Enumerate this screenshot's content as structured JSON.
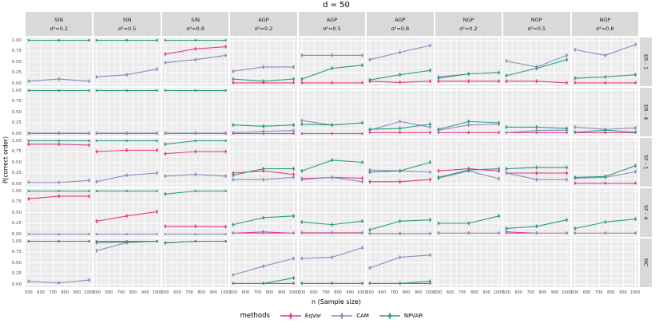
{
  "chart_data": {
    "type": "line",
    "title": "d =  50",
    "xlabel": "n (Sample size)",
    "ylabel": "P(correct order)",
    "legend_title": "methods",
    "x": [
      500,
      750,
      1000
    ],
    "x_ticks": [
      "500",
      "600",
      "700",
      "800",
      "900",
      "1000"
    ],
    "y_ticks": [
      "1.00",
      "0.75",
      "0.50",
      "0.25",
      "0.00"
    ],
    "ylim": [
      0,
      1
    ],
    "grid": true,
    "legend_position": "bottom",
    "error_bar": 0.045,
    "methods": [
      {
        "name": "EqVar",
        "color": "#e7378d"
      },
      {
        "name": "CAM",
        "color": "#8b89c4"
      },
      {
        "name": "NPVAR",
        "color": "#2a9d78"
      }
    ],
    "col_facets": [
      {
        "top": "SIN",
        "bottom": "σ²=0.2"
      },
      {
        "top": "SIN",
        "bottom": "σ²=0.5"
      },
      {
        "top": "SIN",
        "bottom": "σ²=0.8"
      },
      {
        "top": "AGP",
        "bottom": "σ²=0.2"
      },
      {
        "top": "AGP",
        "bottom": "σ²=0.5"
      },
      {
        "top": "AGP",
        "bottom": "σ²=0.8"
      },
      {
        "top": "NGP",
        "bottom": "σ²=0.2"
      },
      {
        "top": "NGP",
        "bottom": "σ²=0.5"
      },
      {
        "top": "NGP",
        "bottom": "σ²=0.8"
      }
    ],
    "row_facets": [
      "ER - 1",
      "ER - 4",
      "SF - 1",
      "SF - 4",
      "MC"
    ],
    "panels": [
      [
        {
          "EqVar": [
            1,
            1,
            1
          ],
          "CAM": [
            0.05,
            0.1,
            0.05
          ],
          "NPVAR": [
            1,
            1,
            1
          ]
        },
        {
          "EqVar": [
            1,
            1,
            1
          ],
          "CAM": [
            0.15,
            0.2,
            0.33
          ],
          "NPVAR": [
            1,
            1,
            1
          ]
        },
        {
          "EqVar": [
            0.68,
            0.8,
            0.85
          ],
          "CAM": [
            0.48,
            0.55,
            0.65
          ],
          "NPVAR": [
            1,
            1,
            1
          ]
        },
        {
          "EqVar": [
            0.01,
            0.01,
            0.01
          ],
          "CAM": [
            0.28,
            0.38,
            0.38
          ],
          "NPVAR": [
            0.1,
            0.05,
            0.1
          ]
        },
        {
          "EqVar": [
            0.01,
            0.01,
            0.01
          ],
          "CAM": [
            0.65,
            0.65,
            0.65
          ],
          "NPVAR": [
            0.1,
            0.35,
            0.42
          ]
        },
        {
          "EqVar": [
            0.05,
            0.02,
            0.05
          ],
          "CAM": [
            0.55,
            0.72,
            0.88
          ],
          "NPVAR": [
            0.08,
            0.2,
            0.3
          ]
        },
        {
          "EqVar": [
            0.05,
            0.05,
            0.05
          ],
          "CAM": [
            0.15,
            0.22,
            0.25
          ],
          "NPVAR": [
            0.12,
            0.22,
            0.25
          ]
        },
        {
          "EqVar": [
            0.05,
            0.05,
            0.01
          ],
          "CAM": [
            0.52,
            0.38,
            0.65
          ],
          "NPVAR": [
            0.18,
            0.35,
            0.55
          ]
        },
        {
          "EqVar": [
            0.01,
            0.01,
            0.01
          ],
          "CAM": [
            0.78,
            0.65,
            0.9
          ],
          "NPVAR": [
            0.12,
            0.15,
            0.2
          ]
        }
      ],
      [
        {
          "EqVar": [
            0,
            0,
            0
          ],
          "CAM": [
            0.01,
            0.01,
            0.01
          ],
          "NPVAR": [
            1,
            1,
            1
          ]
        },
        {
          "EqVar": [
            0,
            0,
            0
          ],
          "CAM": [
            0.01,
            0.01,
            0.01
          ],
          "NPVAR": [
            1,
            1,
            1
          ]
        },
        {
          "EqVar": [
            0,
            0,
            0
          ],
          "CAM": [
            0.01,
            0.01,
            0.01
          ],
          "NPVAR": [
            1,
            1,
            1
          ]
        },
        {
          "EqVar": [
            0,
            0,
            0
          ],
          "CAM": [
            0.02,
            0.05,
            0.07
          ],
          "NPVAR": [
            0.2,
            0.17,
            0.2
          ]
        },
        {
          "EqVar": [
            0,
            0,
            0
          ],
          "CAM": [
            0.3,
            0.2,
            0.25
          ],
          "NPVAR": [
            0.22,
            0.2,
            0.25
          ]
        },
        {
          "EqVar": [
            0.02,
            0.02,
            0.02
          ],
          "CAM": [
            0.08,
            0.28,
            0.15
          ],
          "NPVAR": [
            0.1,
            0.12,
            0.22
          ]
        },
        {
          "EqVar": [
            0.02,
            0.02,
            0.02
          ],
          "CAM": [
            0.08,
            0.2,
            0.22
          ],
          "NPVAR": [
            0.1,
            0.28,
            0.25
          ]
        },
        {
          "EqVar": [
            0.02,
            0.02,
            0.02
          ],
          "CAM": [
            0.02,
            0.07,
            0.08
          ],
          "NPVAR": [
            0.15,
            0.15,
            0.12
          ]
        },
        {
          "EqVar": [
            0.02,
            0.02,
            0.02
          ],
          "CAM": [
            0.15,
            0.1,
            0.13
          ],
          "NPVAR": [
            0.03,
            0.08,
            0.03
          ]
        }
      ],
      [
        {
          "EqVar": [
            0.92,
            0.92,
            0.9
          ],
          "CAM": [
            0.03,
            0.03,
            0.08
          ],
          "NPVAR": [
            1,
            1,
            1
          ]
        },
        {
          "EqVar": [
            0.75,
            0.78,
            0.78
          ],
          "CAM": [
            0.05,
            0.2,
            0.25
          ],
          "NPVAR": [
            1,
            1,
            1
          ]
        },
        {
          "EqVar": [
            0.7,
            0.75,
            0.75
          ],
          "CAM": [
            0.18,
            0.22,
            0.18
          ],
          "NPVAR": [
            0.92,
            1,
            1
          ]
        },
        {
          "EqVar": [
            0.25,
            0.3,
            0.22
          ],
          "CAM": [
            0.1,
            0.1,
            0.15
          ],
          "NPVAR": [
            0.2,
            0.35,
            0.35
          ]
        },
        {
          "EqVar": [
            0.12,
            0.15,
            0.13
          ],
          "CAM": [
            0.1,
            0.15,
            0.05
          ],
          "NPVAR": [
            0.3,
            0.55,
            0.5
          ]
        },
        {
          "EqVar": [
            0.05,
            0.05,
            0.1
          ],
          "CAM": [
            0.32,
            0.3,
            0.27
          ],
          "NPVAR": [
            0.27,
            0.3,
            0.5
          ]
        },
        {
          "EqVar": [
            0.3,
            0.35,
            0.3
          ],
          "CAM": [
            0.13,
            0.3,
            0.12
          ],
          "NPVAR": [
            0.15,
            0.32,
            0.35
          ]
        },
        {
          "EqVar": [
            0.25,
            0.25,
            0.25
          ],
          "CAM": [
            0.25,
            0.1,
            0.1
          ],
          "NPVAR": [
            0.35,
            0.38,
            0.38
          ]
        },
        {
          "EqVar": [
            0.01,
            0.01,
            0.01
          ],
          "CAM": [
            0.13,
            0.15,
            0.28
          ],
          "NPVAR": [
            0.15,
            0.17,
            0.42
          ]
        }
      ],
      [
        {
          "EqVar": [
            0.82,
            0.88,
            0.88
          ],
          "CAM": [
            0,
            0,
            0
          ],
          "NPVAR": [
            1,
            1,
            1
          ]
        },
        {
          "EqVar": [
            0.3,
            0.42,
            0.52
          ],
          "CAM": [
            0,
            0,
            0
          ],
          "NPVAR": [
            1,
            1,
            1
          ]
        },
        {
          "EqVar": [
            0.18,
            0.18,
            0.17
          ],
          "CAM": [
            0,
            0,
            0
          ],
          "NPVAR": [
            0.93,
            1,
            1
          ]
        },
        {
          "EqVar": [
            0.02,
            0.05,
            0.02
          ],
          "CAM": [
            0.02,
            0.02,
            0.02
          ],
          "NPVAR": [
            0.22,
            0.38,
            0.42
          ]
        },
        {
          "EqVar": [
            0.03,
            0.03,
            0.03
          ],
          "CAM": [
            0.02,
            0.02,
            0.02
          ],
          "NPVAR": [
            0.28,
            0.22,
            0.3
          ]
        },
        {
          "EqVar": [
            0.01,
            0.01,
            0.01
          ],
          "CAM": [
            0.01,
            0.01,
            0.01
          ],
          "NPVAR": [
            0.1,
            0.3,
            0.33
          ]
        },
        {
          "EqVar": [
            0.02,
            0.02,
            0.02
          ],
          "CAM": [
            0.02,
            0.02,
            0.02
          ],
          "NPVAR": [
            0.25,
            0.25,
            0.42
          ]
        },
        {
          "EqVar": [
            0.05,
            0.02,
            0.02
          ],
          "CAM": [
            0.02,
            0.02,
            0.02
          ],
          "NPVAR": [
            0.13,
            0.18,
            0.33
          ]
        },
        {
          "EqVar": [
            0.02,
            0.02,
            0.02
          ],
          "CAM": [
            0.02,
            0.02,
            0.02
          ],
          "NPVAR": [
            0.13,
            0.28,
            0.35
          ]
        }
      ],
      [
        {
          "EqVar": [
            1,
            1,
            1
          ],
          "CAM": [
            0.07,
            0.03,
            0.1
          ],
          "NPVAR": [
            1,
            1,
            1
          ]
        },
        {
          "EqVar": [
            1,
            1,
            1
          ],
          "CAM": [
            0.78,
            0.97,
            1
          ],
          "NPVAR": [
            0.97,
            0.98,
            1
          ]
        },
        {
          "EqVar": [
            0.97,
            1,
            1
          ],
          "CAM": [
            0.96,
            1,
            1
          ],
          "NPVAR": [
            0.97,
            1,
            1
          ]
        },
        {
          "EqVar": [
            0.02,
            0.02,
            0.02
          ],
          "CAM": [
            0.22,
            0.42,
            0.6
          ],
          "NPVAR": [
            0.02,
            0.02,
            0.15
          ]
        },
        {
          "EqVar": [
            0.02,
            0.02,
            0.02
          ],
          "CAM": [
            0.6,
            0.63,
            0.85
          ],
          "NPVAR": [
            0.02,
            0.02,
            0.02
          ]
        },
        {
          "EqVar": [
            0.02,
            0.02,
            0.02
          ],
          "CAM": [
            0.38,
            0.63,
            0.68
          ],
          "NPVAR": [
            0.02,
            0.02,
            0.07
          ]
        },
        {},
        {},
        {}
      ]
    ],
    "colors": {
      "strip_bg": "#d9d9d9",
      "panel_bg": "#ebebeb",
      "gridline": "#ffffff",
      "tick_text": "#4d4d4d"
    }
  }
}
